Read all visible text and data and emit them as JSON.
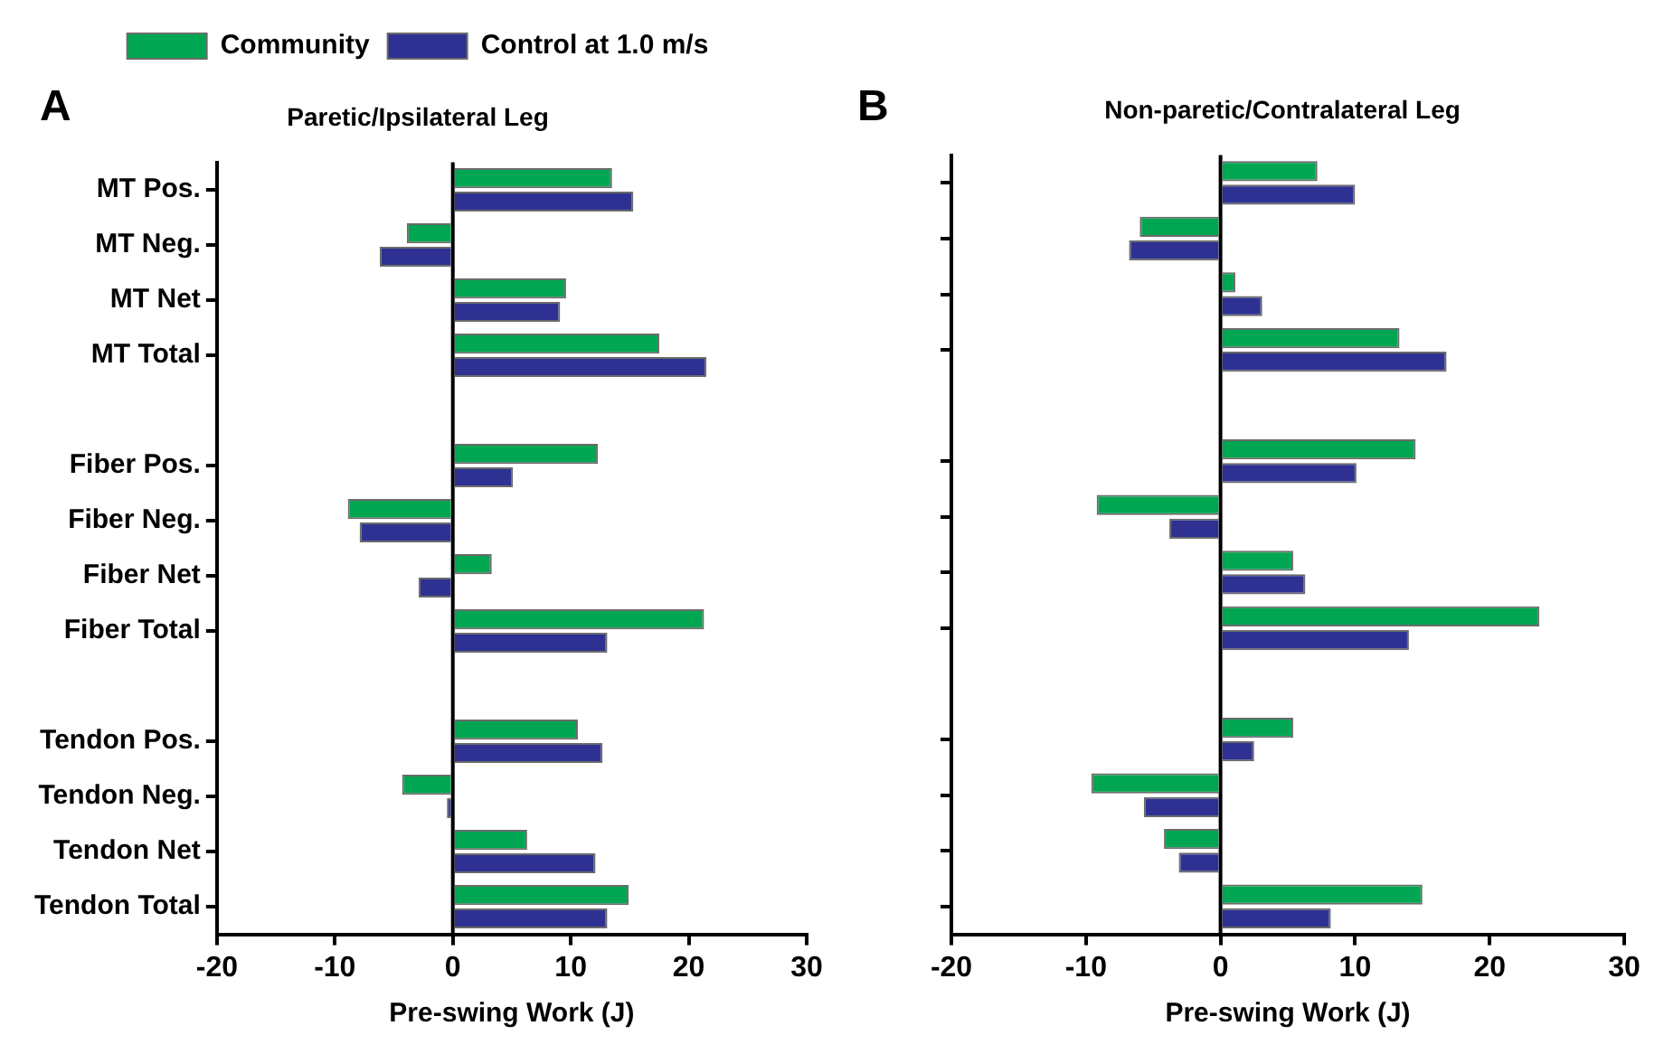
{
  "chart_data": [
    {
      "type": "bar",
      "orientation": "horizontal",
      "title": "Paretic/Ipsilateral Leg",
      "xlabel": "Pre-swing Work (J)",
      "annotations": [
        "A"
      ],
      "categories": [
        "MT Pos.",
        "MT Neg.",
        "MT Net",
        "MT Total",
        null,
        "Fiber Pos.",
        "Fiber Neg.",
        "Fiber Net",
        "Fiber Total",
        null,
        "Tendon Pos.",
        "Tendon Neg.",
        "Tendon Net",
        "Tendon Total"
      ],
      "series": [
        {
          "name": "Community",
          "color": "#00a651",
          "values": [
            13.5,
            -3.9,
            9.6,
            17.5,
            null,
            12.3,
            -8.9,
            3.3,
            21.3,
            null,
            10.6,
            -4.3,
            6.3,
            14.9
          ]
        },
        {
          "name": "Control at 1.0 m/s",
          "color": "#2e3192",
          "values": [
            15.3,
            -6.2,
            9.1,
            21.5,
            null,
            5.1,
            -7.9,
            -2.9,
            13.1,
            null,
            12.7,
            -0.5,
            12.1,
            13.1
          ]
        }
      ],
      "xlim": [
        -20,
        30
      ],
      "xticks": [
        -20,
        -10,
        0,
        10,
        20,
        30
      ],
      "ref_lines": [
        {
          "axis": "x",
          "value": 0
        }
      ],
      "grid": false,
      "legend": "top"
    },
    {
      "type": "bar",
      "orientation": "horizontal",
      "title": "Non-paretic/Contralateral Leg",
      "xlabel": "Pre-swing Work (J)",
      "annotations": [
        "B"
      ],
      "categories": [
        null,
        null,
        null,
        null,
        null,
        null,
        null,
        null,
        null,
        null,
        null,
        null,
        null,
        null
      ],
      "series": [
        {
          "color": "#00a651",
          "values": [
            7.2,
            -6.0,
            1.1,
            13.3,
            null,
            14.5,
            -9.2,
            5.4,
            23.7,
            null,
            5.4,
            -9.6,
            -4.2,
            15.0
          ]
        },
        {
          "color": "#2e3192",
          "values": [
            10.0,
            -6.8,
            3.1,
            16.8,
            null,
            10.1,
            -3.8,
            6.3,
            14.0,
            null,
            2.5,
            -5.7,
            -3.1,
            8.2
          ]
        }
      ],
      "xlim": [
        -20,
        30
      ],
      "xticks": [
        -20,
        -10,
        0,
        10,
        20,
        30
      ],
      "ref_lines": [
        {
          "axis": "x",
          "value": 0
        }
      ],
      "grid": false,
      "tick_labels": "x"
    }
  ]
}
